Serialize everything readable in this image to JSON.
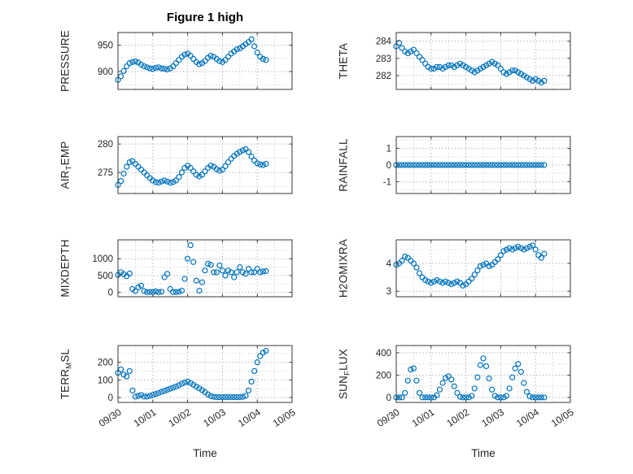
{
  "figure": {
    "title": "Figure 1 high",
    "marker_color": "#0072BD",
    "axis_color": "#3a3a3a",
    "grid_major_color": "#b8b8b8",
    "grid_minor_color": "#d8d8d8",
    "tick_text_color": "#262626",
    "background": "#ffffff",
    "xlabel_left": "Time",
    "xlabel_right": "Time"
  },
  "chart_data": {
    "type": "scatter",
    "title": "Figure 1 high",
    "xlabel": "Time",
    "marker": "open-circle",
    "grid": "dotted",
    "xlim_hours": [
      0,
      120
    ],
    "xtick_hours": [
      0,
      24,
      48,
      72,
      96,
      120
    ],
    "xtick_labels": [
      "09/30",
      "10/01",
      "10/02",
      "10/03",
      "10/04",
      "10/05"
    ],
    "x_hours": [
      0,
      2,
      4,
      6,
      8,
      10,
      12,
      14,
      16,
      18,
      20,
      22,
      24,
      26,
      28,
      30,
      32,
      34,
      36,
      38,
      40,
      42,
      44,
      46,
      48,
      50,
      52,
      54,
      56,
      58,
      60,
      62,
      64,
      66,
      68,
      70,
      72,
      74,
      76,
      78,
      80,
      82,
      84,
      86,
      88,
      90,
      92,
      94,
      96,
      98,
      100,
      102
    ],
    "panels": [
      {
        "name": "pressure",
        "ylabel_pre": "PRESSURE",
        "ylabel_sub": "",
        "ylabel_post": "",
        "yticks": [
          900,
          950
        ],
        "ylim": [
          866,
          974
        ],
        "show_xticklabels": false,
        "values": [
          884,
          891,
          901,
          910,
          916,
          918,
          919,
          917,
          913,
          910,
          908,
          906,
          905,
          907,
          908,
          906,
          905,
          904,
          906,
          910,
          916,
          922,
          928,
          932,
          934,
          930,
          924,
          918,
          914,
          916,
          920,
          926,
          930,
          928,
          924,
          920,
          918,
          922,
          928,
          934,
          938,
          942,
          944,
          948,
          952,
          956,
          961,
          948,
          936,
          928,
          924,
          922
        ]
      },
      {
        "name": "theta",
        "ylabel_pre": "THETA",
        "ylabel_sub": "",
        "ylabel_post": "",
        "yticks": [
          282,
          283,
          284
        ],
        "ylim": [
          281.2,
          284.5
        ],
        "show_xticklabels": false,
        "values": [
          283.7,
          283.9,
          283.6,
          283.4,
          283.3,
          283.4,
          283.5,
          283.3,
          283.1,
          282.9,
          282.7,
          282.5,
          282.4,
          282.4,
          282.5,
          282.5,
          282.4,
          282.5,
          282.6,
          282.6,
          282.5,
          282.6,
          282.7,
          282.6,
          282.5,
          282.4,
          282.3,
          282.2,
          282.3,
          282.4,
          282.5,
          282.6,
          282.7,
          282.8,
          282.7,
          282.6,
          282.4,
          282.2,
          282.1,
          282.2,
          282.3,
          282.3,
          282.2,
          282.1,
          282.0,
          281.9,
          281.8,
          281.7,
          281.8,
          281.7,
          281.6,
          281.7
        ]
      },
      {
        "name": "air-temp",
        "ylabel_pre": "AIR",
        "ylabel_sub": "T",
        "ylabel_post": "EMP",
        "yticks": [
          275,
          280
        ],
        "ylim": [
          271.3,
          281.3
        ],
        "show_xticklabels": false,
        "values": [
          272.8,
          273.5,
          274.8,
          276.0,
          276.8,
          277.0,
          276.5,
          276.0,
          275.5,
          275.0,
          274.5,
          274.0,
          273.6,
          273.3,
          273.2,
          273.4,
          273.6,
          273.4,
          273.2,
          273.3,
          273.6,
          274.2,
          275.0,
          275.8,
          276.2,
          275.8,
          275.2,
          274.6,
          274.3,
          274.6,
          275.2,
          275.8,
          276.2,
          276.0,
          275.6,
          275.3,
          275.5,
          276.1,
          276.8,
          277.4,
          277.9,
          278.3,
          278.6,
          278.9,
          279.1,
          278.6,
          277.8,
          277.1,
          276.6,
          276.4,
          276.3,
          276.5
        ]
      },
      {
        "name": "rainfall",
        "ylabel_pre": "RAINFALL",
        "ylabel_sub": "",
        "ylabel_post": "",
        "yticks": [
          -1,
          0,
          1
        ],
        "ylim": [
          -1.7,
          1.7
        ],
        "show_xticklabels": false,
        "values": [
          0,
          0,
          0,
          0,
          0,
          0,
          0,
          0,
          0,
          0,
          0,
          0,
          0,
          0,
          0,
          0,
          0,
          0,
          0,
          0,
          0,
          0,
          0,
          0,
          0,
          0,
          0,
          0,
          0,
          0,
          0,
          0,
          0,
          0,
          0,
          0,
          0,
          0,
          0,
          0,
          0,
          0,
          0,
          0,
          0,
          0,
          0,
          0,
          0,
          0,
          0,
          0
        ]
      },
      {
        "name": "mixdepth",
        "ylabel_pre": "MIXDEPTH",
        "ylabel_sub": "",
        "ylabel_post": "",
        "yticks": [
          0,
          500,
          1000
        ],
        "ylim": [
          -130,
          1560
        ],
        "show_xticklabels": false,
        "values": [
          520,
          600,
          540,
          480,
          560,
          100,
          40,
          150,
          200,
          40,
          10,
          10,
          10,
          30,
          10,
          20,
          450,
          550,
          100,
          10,
          10,
          20,
          50,
          400,
          1000,
          1400,
          900,
          350,
          50,
          300,
          650,
          850,
          820,
          600,
          600,
          800,
          650,
          500,
          650,
          600,
          450,
          600,
          750,
          600,
          550,
          700,
          600,
          600,
          700,
          600,
          620,
          630
        ]
      },
      {
        "name": "h2omixra",
        "ylabel_pre": "H2OMIXRA",
        "ylabel_sub": "",
        "ylabel_post": "",
        "yticks": [
          3,
          4
        ],
        "ylim": [
          2.8,
          4.85
        ],
        "show_xticklabels": false,
        "values": [
          3.95,
          4.0,
          4.1,
          4.25,
          4.2,
          4.1,
          4.0,
          3.85,
          3.65,
          3.5,
          3.4,
          3.35,
          3.3,
          3.35,
          3.4,
          3.35,
          3.3,
          3.35,
          3.3,
          3.25,
          3.3,
          3.35,
          3.3,
          3.2,
          3.25,
          3.35,
          3.45,
          3.6,
          3.75,
          3.9,
          3.95,
          4.0,
          3.9,
          3.95,
          4.05,
          4.15,
          4.3,
          4.45,
          4.5,
          4.55,
          4.5,
          4.55,
          4.6,
          4.55,
          4.5,
          4.55,
          4.6,
          4.65,
          4.5,
          4.3,
          4.2,
          4.35
        ]
      },
      {
        "name": "terr-msl",
        "ylabel_pre": "TERR",
        "ylabel_sub": "M",
        "ylabel_post": "SL",
        "yticks": [
          0,
          100,
          200
        ],
        "ylim": [
          -28,
          295
        ],
        "show_xticklabels": true,
        "values": [
          140,
          160,
          130,
          120,
          150,
          40,
          5,
          10,
          15,
          5,
          5,
          10,
          15,
          20,
          26,
          32,
          38,
          44,
          50,
          56,
          62,
          70,
          78,
          85,
          90,
          82,
          72,
          62,
          52,
          42,
          30,
          18,
          8,
          4,
          2,
          2,
          2,
          2,
          2,
          2,
          2,
          2,
          2,
          4,
          10,
          40,
          90,
          150,
          200,
          235,
          255,
          265
        ]
      },
      {
        "name": "sun-flux",
        "ylabel_pre": "SUN",
        "ylabel_sub": "F",
        "ylabel_post": "LUX",
        "yticks": [
          0,
          200,
          400
        ],
        "ylim": [
          -45,
          465
        ],
        "show_xticklabels": true,
        "values": [
          0,
          0,
          0,
          40,
          150,
          250,
          260,
          150,
          40,
          0,
          0,
          0,
          0,
          0,
          20,
          70,
          130,
          175,
          190,
          160,
          100,
          40,
          5,
          0,
          0,
          0,
          15,
          80,
          180,
          290,
          350,
          280,
          170,
          70,
          15,
          0,
          0,
          0,
          15,
          80,
          180,
          260,
          300,
          230,
          130,
          50,
          10,
          0,
          0,
          0,
          0,
          0
        ]
      }
    ]
  }
}
